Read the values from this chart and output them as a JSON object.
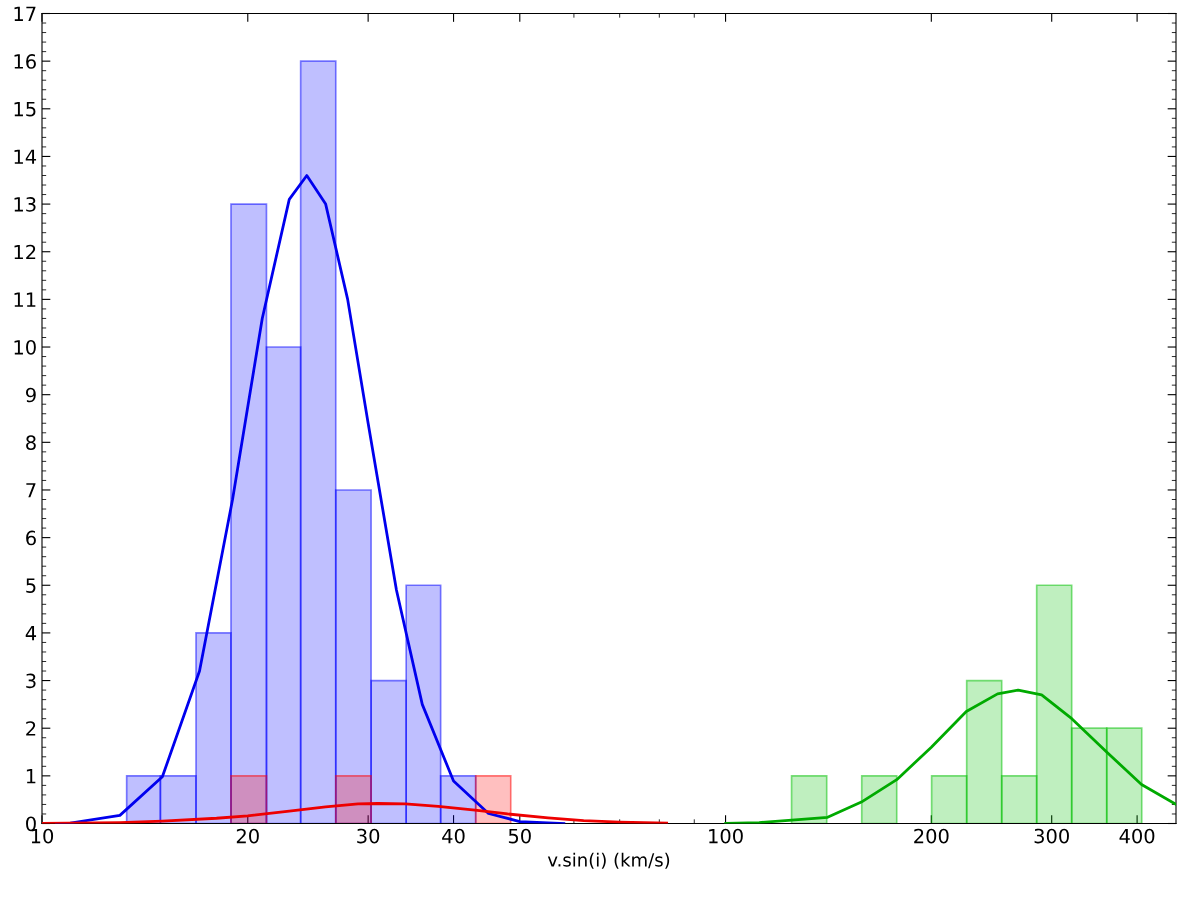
{
  "chart_data": {
    "type": "histogram",
    "xlabel": "v.sin(i) (km/s)",
    "log": "x",
    "xlim": [
      10,
      456
    ],
    "xticks": [
      10,
      20,
      30,
      40,
      50,
      100,
      200,
      300,
      400
    ],
    "ylim": [
      0,
      17
    ],
    "yticks": [
      0,
      1,
      2,
      3,
      4,
      5,
      6,
      7,
      8,
      9,
      10,
      11,
      12,
      13,
      14,
      15,
      16,
      17
    ],
    "grid": false,
    "legend": false,
    "series": [
      {
        "color": "#0000ff",
        "bins": [
          13.3,
          14.9,
          16.8,
          18.9,
          21.3,
          23.9,
          26.9,
          30.3,
          34.1,
          38.3,
          43.1
        ],
        "values": [
          1,
          1,
          4,
          13,
          10,
          16,
          7,
          3,
          5,
          1
        ]
      },
      {
        "color": "#ff0000",
        "bins": [
          18.9,
          21.3,
          26.9,
          30.3,
          43.1,
          48.5
        ],
        "values": [
          1,
          0,
          1,
          0,
          1
        ]
      },
      {
        "color": "#00c000",
        "bins": [
          124.9,
          140.6,
          158.2,
          178.0,
          200.2,
          225.3,
          253.5,
          285.2,
          320.9,
          361.1,
          406.3
        ],
        "values": [
          1,
          0,
          1,
          0,
          1,
          3,
          1,
          5,
          2,
          2
        ]
      },
      {
        "type": "line",
        "color": "#0000ee",
        "x": [
          10.5,
          11,
          13,
          15,
          17,
          19,
          21,
          23,
          24.4,
          26,
          28,
          30,
          33,
          36,
          40,
          45,
          50,
          58
        ],
        "values": [
          0,
          0.01,
          0.17,
          0.98,
          3.2,
          6.8,
          10.6,
          13.1,
          13.6,
          13.0,
          11.0,
          8.4,
          4.9,
          2.5,
          0.89,
          0.21,
          0.04,
          0
        ]
      },
      {
        "type": "line",
        "color": "#ee0000",
        "x": [
          10,
          13,
          15,
          18,
          20,
          23,
          26,
          29,
          31,
          34,
          38,
          43,
          48,
          55,
          62,
          70,
          82
        ],
        "values": [
          0,
          0.02,
          0.05,
          0.11,
          0.16,
          0.26,
          0.35,
          0.41,
          0.42,
          0.41,
          0.36,
          0.28,
          0.2,
          0.12,
          0.06,
          0.03,
          0.01
        ]
      },
      {
        "type": "line",
        "color": "#00aa00",
        "x": [
          100,
          112,
          125,
          141,
          158,
          178,
          200,
          225,
          250,
          268,
          290,
          321,
          361,
          406,
          456
        ],
        "values": [
          0,
          0.02,
          0.07,
          0.13,
          0.45,
          0.92,
          1.6,
          2.35,
          2.72,
          2.8,
          2.7,
          2.2,
          1.5,
          0.82,
          0.4
        ]
      }
    ]
  }
}
